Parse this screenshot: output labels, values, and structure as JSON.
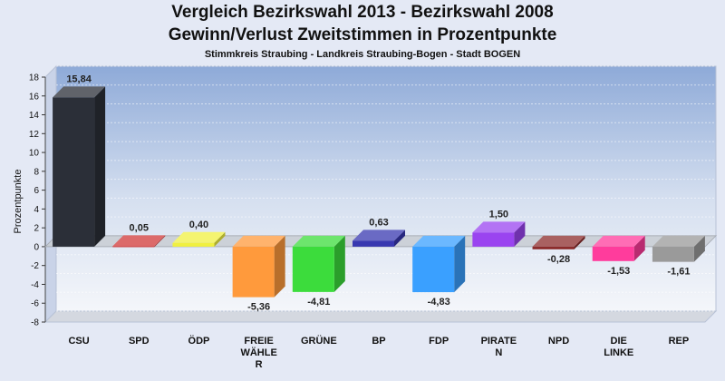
{
  "chart_data": {
    "type": "bar",
    "title": "Vergleich Bezirkswahl 2013 - Bezirkswahl 2008",
    "subtitle": "Gewinn/Verlust Zweitstimmen in Prozentpunkte",
    "subtitle2": "Stimmkreis Straubing - Landkreis Straubing-Bogen - Stadt BOGEN",
    "ylabel": "Prozentpunkte",
    "ylim": [
      -8,
      18
    ],
    "yticks": [
      18,
      16,
      14,
      12,
      10,
      8,
      6,
      4,
      2,
      0,
      -2,
      -4,
      -6,
      -8
    ],
    "categories": [
      "CSU",
      "SPD",
      "ÖDP",
      "FREIE WÄHLER",
      "GRÜNE",
      "BP",
      "FDP",
      "PIRATEN",
      "NPD",
      "DIE LINKE",
      "REP"
    ],
    "category_labels": [
      [
        "CSU"
      ],
      [
        "SPD"
      ],
      [
        "ÖDP"
      ],
      [
        "FREIE",
        "WÄHLE",
        "R"
      ],
      [
        "GRÜNE"
      ],
      [
        "BP"
      ],
      [
        "FDP"
      ],
      [
        "PIRATE",
        "N"
      ],
      [
        "NPD"
      ],
      [
        "DIE",
        "LINKE"
      ],
      [
        "REP"
      ]
    ],
    "values": [
      15.84,
      0.05,
      0.4,
      -5.36,
      -4.81,
      0.63,
      -4.83,
      1.5,
      -0.28,
      -1.53,
      -1.61
    ],
    "value_labels": [
      "15,84",
      "0,05",
      "0,40",
      "-5,36",
      "-4,81",
      "0,63",
      "-4,83",
      "1,50",
      "-0,28",
      "-1,53",
      "-1,61"
    ],
    "colors": [
      "#2b2f38",
      "#d03838",
      "#f0f040",
      "#ff9a3c",
      "#3cdc3c",
      "#3838b0",
      "#3aa0ff",
      "#9a44f0",
      "#8c2c2c",
      "#ff3c9c",
      "#9a9a9a"
    ],
    "grid": true
  }
}
